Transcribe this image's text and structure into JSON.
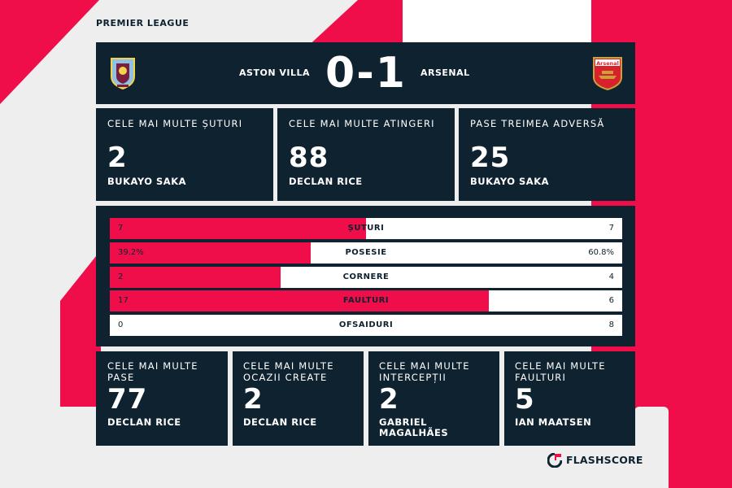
{
  "league": "PREMIER LEAGUE",
  "match": {
    "home_team": "ASTON VILLA",
    "away_team": "ARSENAL",
    "home_score": "0",
    "away_score": "1",
    "separator": "-",
    "away_crest_text": "Arsenal"
  },
  "top_stats": [
    {
      "title": "CELE MAI MULTE ȘUTURI",
      "value": "2",
      "player": "BUKAYO SAKA"
    },
    {
      "title": "CELE MAI MULTE ATINGERI",
      "value": "88",
      "player": "DECLAN RICE"
    },
    {
      "title": "PASE TREIMEA ADVERSĂ",
      "value": "25",
      "player": "BUKAYO SAKA"
    }
  ],
  "team_stats": [
    {
      "label": "ȘUTURI",
      "home": "7",
      "away": "7",
      "home_share": 0.5
    },
    {
      "label": "POSESIE",
      "home": "39.2%",
      "away": "60.8%",
      "home_share": 0.392
    },
    {
      "label": "CORNERE",
      "home": "2",
      "away": "4",
      "home_share": 0.333
    },
    {
      "label": "FAULTURI",
      "home": "17",
      "away": "6",
      "home_share": 0.739
    },
    {
      "label": "OFSAIDURI",
      "home": "0",
      "away": "8",
      "home_share": 0
    }
  ],
  "bottom_stats": [
    {
      "title_line1": "CELE MAI MULTE PASE",
      "title_line2": "",
      "value": "77",
      "player_line1": "DECLAN RICE",
      "player_line2": ""
    },
    {
      "title_line1": "CELE MAI MULTE",
      "title_line2": "OCAZII CREATE",
      "value": "2",
      "player_line1": "DECLAN RICE",
      "player_line2": ""
    },
    {
      "title_line1": "CELE MAI MULTE",
      "title_line2": "INTERCEPȚII",
      "value": "2",
      "player_line1": "GABRIEL",
      "player_line2": "MAGALHÃES"
    },
    {
      "title_line1": "CELE MAI MULTE",
      "title_line2": "FAULTURI",
      "value": "5",
      "player_line1": "IAN MAATSEN",
      "player_line2": ""
    }
  ],
  "brand": "FLASHSCORE",
  "colors": {
    "accent": "#ef0e4a",
    "panel": "#0f2230",
    "background": "#eeeeee"
  }
}
